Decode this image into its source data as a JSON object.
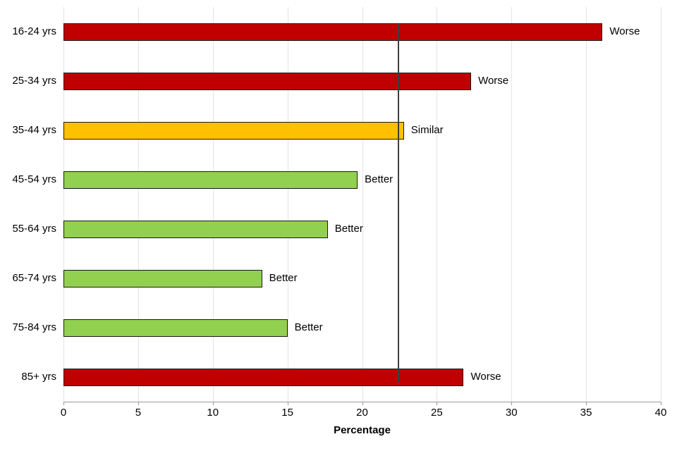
{
  "chart_data": {
    "type": "bar",
    "orientation": "horizontal",
    "title": "",
    "xlabel": "Percentage",
    "xlim": [
      0,
      40
    ],
    "x_ticks": [
      0,
      5,
      10,
      15,
      20,
      25,
      30,
      35,
      40
    ],
    "grid": true,
    "categories": [
      "16-24 yrs",
      "25-34 yrs",
      "35-44 yrs",
      "45-54 yrs",
      "55-64 yrs",
      "65-74 yrs",
      "75-84 yrs",
      "85+ yrs"
    ],
    "values": [
      36.1,
      27.3,
      22.8,
      19.7,
      17.7,
      13.3,
      15.0,
      26.8
    ],
    "bar_labels": [
      "Worse",
      "Worse",
      "Similar",
      "Better",
      "Better",
      "Better",
      "Better",
      "Worse"
    ],
    "bar_colors": [
      "#C00000",
      "#C00000",
      "#FFC000",
      "#92D050",
      "#92D050",
      "#92D050",
      "#92D050",
      "#C00000"
    ],
    "reference_line_x": 22.4,
    "colors": {
      "worse": "#C00000",
      "similar": "#FFC000",
      "better": "#92D050",
      "reference_line": "#3f3f3f",
      "gridline": "#e4e4e4",
      "axis": "#9a9a9a",
      "bar_border": "#1a1a1a"
    }
  }
}
